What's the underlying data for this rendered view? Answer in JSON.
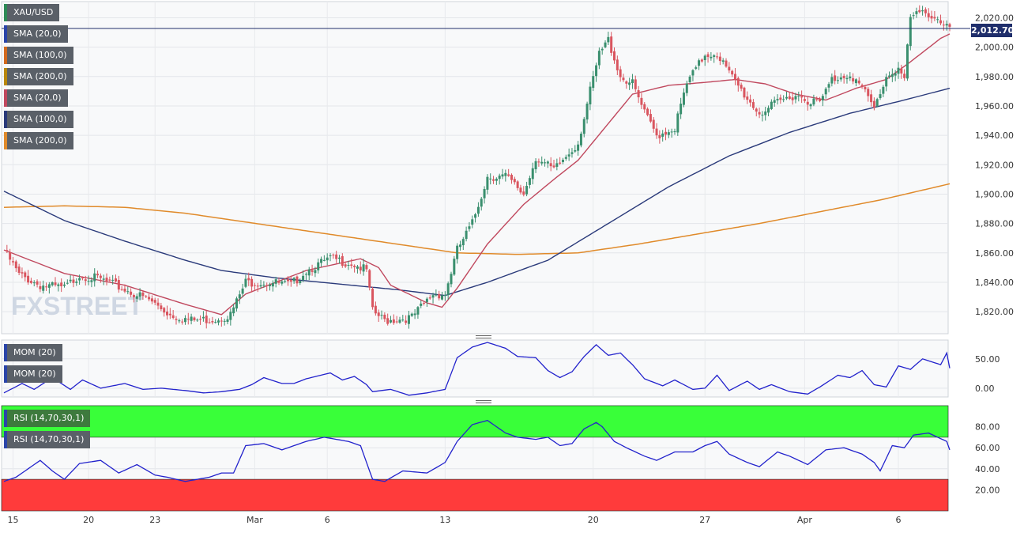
{
  "header": {
    "labels": [
      {
        "text": "XAU/USD",
        "color": "#2e8b57"
      },
      {
        "text": "SMA (20,0)",
        "color": "#2a44a8"
      },
      {
        "text": "SMA (100,0)",
        "color": "#d2691e"
      },
      {
        "text": "SMA (200,0)",
        "color": "#b8860b"
      },
      {
        "text": "SMA (20,0)",
        "color": "#c0485e"
      },
      {
        "text": "SMA (100,0)",
        "color": "#2a3a7a"
      },
      {
        "text": "SMA (200,0)",
        "color": "#e08a2a"
      }
    ],
    "last_price": "2,012.70"
  },
  "chart_data": [
    {
      "type": "candlestick",
      "title": "XAU/USD",
      "watermark": "FXSTREET",
      "ylim": [
        1805,
        2031
      ],
      "yticks": [
        "1,820.00",
        "1,840.00",
        "1,860.00",
        "1,880.00",
        "1,900.00",
        "1,920.00",
        "1,940.00",
        "1,960.00",
        "1,980.00",
        "2,000.00",
        "2,020.00"
      ],
      "ytick_values": [
        1820,
        1840,
        1860,
        1880,
        1900,
        1920,
        1940,
        1960,
        1980,
        2000,
        2020
      ],
      "last_value": 2012.7,
      "x_labels": [
        "15",
        "20",
        "23",
        "Mar",
        "6",
        "13",
        "20",
        "27",
        "Apr",
        "6"
      ],
      "colors": {
        "up": "#3a8f6e",
        "down": "#d9555f",
        "sma20": "#c0485e",
        "sma100": "#2a3a7a",
        "sma200": "#e08a2a"
      },
      "close_anchors": [
        [
          0,
          1862
        ],
        [
          5,
          1845
        ],
        [
          12,
          1838
        ],
        [
          20,
          1836
        ],
        [
          25,
          1845
        ],
        [
          32,
          1842
        ],
        [
          40,
          1835
        ],
        [
          48,
          1828
        ],
        [
          55,
          1818
        ],
        [
          62,
          1814
        ],
        [
          70,
          1815
        ],
        [
          75,
          1818
        ],
        [
          80,
          1840
        ],
        [
          88,
          1840
        ],
        [
          95,
          1838
        ],
        [
          100,
          1848
        ],
        [
          108,
          1856
        ],
        [
          115,
          1853
        ],
        [
          120,
          1848
        ],
        [
          122,
          1820
        ],
        [
          126,
          1814
        ],
        [
          135,
          1816
        ],
        [
          142,
          1832
        ],
        [
          146,
          1832
        ],
        [
          150,
          1862
        ],
        [
          155,
          1880
        ],
        [
          160,
          1912
        ],
        [
          166,
          1912
        ],
        [
          172,
          1900
        ],
        [
          176,
          1925
        ],
        [
          182,
          1916
        ],
        [
          190,
          1935
        ],
        [
          194,
          1970
        ],
        [
          197,
          1995
        ],
        [
          200,
          2005
        ],
        [
          204,
          1980
        ],
        [
          208,
          1975
        ],
        [
          212,
          1955
        ],
        [
          216,
          1940
        ],
        [
          222,
          1945
        ],
        [
          226,
          1975
        ],
        [
          232,
          1995
        ],
        [
          236,
          1996
        ],
        [
          240,
          1982
        ],
        [
          246,
          1965
        ],
        [
          250,
          1955
        ],
        [
          256,
          1962
        ],
        [
          262,
          1968
        ],
        [
          266,
          1964
        ],
        [
          270,
          1962
        ],
        [
          274,
          1978
        ],
        [
          280,
          1982
        ],
        [
          284,
          1972
        ],
        [
          288,
          1958
        ],
        [
          292,
          1980
        ],
        [
          296,
          1986
        ],
        [
          298,
          1978
        ],
        [
          300,
          2020
        ],
        [
          305,
          2024
        ],
        [
          310,
          2018
        ],
        [
          313,
          2012.7
        ]
      ],
      "sma20_anchors": [
        [
          0,
          1862
        ],
        [
          20,
          1846
        ],
        [
          40,
          1838
        ],
        [
          60,
          1825
        ],
        [
          72,
          1818
        ],
        [
          80,
          1832
        ],
        [
          100,
          1848
        ],
        [
          118,
          1856
        ],
        [
          124,
          1850
        ],
        [
          128,
          1838
        ],
        [
          140,
          1826
        ],
        [
          145,
          1823
        ],
        [
          150,
          1836
        ],
        [
          160,
          1866
        ],
        [
          172,
          1893
        ],
        [
          182,
          1910
        ],
        [
          190,
          1923
        ],
        [
          200,
          1948
        ],
        [
          208,
          1968
        ],
        [
          220,
          1974
        ],
        [
          232,
          1976
        ],
        [
          242,
          1978
        ],
        [
          252,
          1975
        ],
        [
          262,
          1968
        ],
        [
          272,
          1964
        ],
        [
          282,
          1972
        ],
        [
          292,
          1978
        ],
        [
          300,
          1990
        ],
        [
          310,
          2006
        ],
        [
          313,
          2009
        ]
      ],
      "sma100_anchors": [
        [
          0,
          1902
        ],
        [
          20,
          1882
        ],
        [
          40,
          1868
        ],
        [
          60,
          1855
        ],
        [
          72,
          1848
        ],
        [
          90,
          1843
        ],
        [
          110,
          1839
        ],
        [
          130,
          1835
        ],
        [
          146,
          1831
        ],
        [
          160,
          1840
        ],
        [
          180,
          1855
        ],
        [
          200,
          1880
        ],
        [
          220,
          1905
        ],
        [
          240,
          1926
        ],
        [
          260,
          1942
        ],
        [
          280,
          1955
        ],
        [
          296,
          1963
        ],
        [
          313,
          1972
        ]
      ],
      "sma200_anchors": [
        [
          0,
          1891
        ],
        [
          20,
          1892
        ],
        [
          40,
          1891
        ],
        [
          60,
          1887
        ],
        [
          80,
          1881
        ],
        [
          100,
          1875
        ],
        [
          120,
          1869
        ],
        [
          140,
          1863
        ],
        [
          150,
          1860
        ],
        [
          170,
          1859
        ],
        [
          190,
          1860
        ],
        [
          210,
          1866
        ],
        [
          230,
          1873
        ],
        [
          250,
          1880
        ],
        [
          270,
          1888
        ],
        [
          290,
          1896
        ],
        [
          313,
          1907
        ]
      ]
    },
    {
      "type": "line",
      "title": "MOM (20)",
      "labels": [
        "MOM (20)",
        "MOM (20)"
      ],
      "ylim": [
        -15,
        82
      ],
      "yticks": [
        "0.00",
        "50.00"
      ],
      "ytick_values": [
        0,
        50
      ],
      "color": "#2222cc",
      "anchors": [
        [
          0,
          -8
        ],
        [
          6,
          8
        ],
        [
          10,
          -2
        ],
        [
          16,
          18
        ],
        [
          22,
          -2
        ],
        [
          26,
          14
        ],
        [
          32,
          0
        ],
        [
          40,
          8
        ],
        [
          46,
          -2
        ],
        [
          52,
          0
        ],
        [
          60,
          -4
        ],
        [
          66,
          -8
        ],
        [
          72,
          -6
        ],
        [
          78,
          -2
        ],
        [
          82,
          6
        ],
        [
          86,
          18
        ],
        [
          92,
          8
        ],
        [
          96,
          8
        ],
        [
          100,
          16
        ],
        [
          108,
          26
        ],
        [
          112,
          14
        ],
        [
          116,
          20
        ],
        [
          120,
          6
        ],
        [
          122,
          -6
        ],
        [
          128,
          -2
        ],
        [
          134,
          -12
        ],
        [
          140,
          -8
        ],
        [
          146,
          -2
        ],
        [
          150,
          52
        ],
        [
          155,
          70
        ],
        [
          160,
          78
        ],
        [
          166,
          68
        ],
        [
          170,
          54
        ],
        [
          176,
          52
        ],
        [
          180,
          30
        ],
        [
          184,
          18
        ],
        [
          188,
          28
        ],
        [
          192,
          54
        ],
        [
          196,
          74
        ],
        [
          200,
          56
        ],
        [
          204,
          60
        ],
        [
          208,
          40
        ],
        [
          212,
          16
        ],
        [
          218,
          4
        ],
        [
          222,
          14
        ],
        [
          228,
          -2
        ],
        [
          232,
          0
        ],
        [
          236,
          22
        ],
        [
          240,
          -4
        ],
        [
          246,
          12
        ],
        [
          250,
          -2
        ],
        [
          254,
          6
        ],
        [
          260,
          -6
        ],
        [
          266,
          -10
        ],
        [
          270,
          2
        ],
        [
          276,
          22
        ],
        [
          280,
          18
        ],
        [
          284,
          30
        ],
        [
          288,
          6
        ],
        [
          292,
          2
        ],
        [
          296,
          38
        ],
        [
          300,
          32
        ],
        [
          304,
          50
        ],
        [
          310,
          40
        ],
        [
          312,
          60
        ],
        [
          313,
          34
        ]
      ]
    },
    {
      "type": "line",
      "title": "RSI (14,70,30,1)",
      "labels": [
        "RSI (14,70,30,1)",
        "RSI (14,70,30,1)"
      ],
      "ylim": [
        0,
        100
      ],
      "yticks": [
        "20.00",
        "40.00",
        "60.00",
        "80.00"
      ],
      "ytick_values": [
        20,
        40,
        60,
        80
      ],
      "bands": {
        "overbought": 70,
        "oversold": 30,
        "overbought_color": "#39ff39",
        "oversold_color": "#ff3b3b"
      },
      "color": "#2222cc",
      "anchors": [
        [
          0,
          28
        ],
        [
          4,
          32
        ],
        [
          8,
          40
        ],
        [
          12,
          48
        ],
        [
          16,
          38
        ],
        [
          20,
          30
        ],
        [
          25,
          45
        ],
        [
          32,
          48
        ],
        [
          38,
          36
        ],
        [
          44,
          44
        ],
        [
          50,
          34
        ],
        [
          54,
          32
        ],
        [
          60,
          28
        ],
        [
          64,
          30
        ],
        [
          68,
          32
        ],
        [
          72,
          36
        ],
        [
          76,
          36
        ],
        [
          80,
          62
        ],
        [
          86,
          64
        ],
        [
          92,
          58
        ],
        [
          96,
          62
        ],
        [
          100,
          66
        ],
        [
          106,
          70
        ],
        [
          110,
          68
        ],
        [
          114,
          66
        ],
        [
          118,
          62
        ],
        [
          122,
          30
        ],
        [
          126,
          28
        ],
        [
          132,
          38
        ],
        [
          140,
          36
        ],
        [
          146,
          46
        ],
        [
          150,
          66
        ],
        [
          155,
          82
        ],
        [
          160,
          86
        ],
        [
          166,
          74
        ],
        [
          170,
          70
        ],
        [
          176,
          68
        ],
        [
          180,
          70
        ],
        [
          184,
          62
        ],
        [
          188,
          64
        ],
        [
          192,
          78
        ],
        [
          196,
          84
        ],
        [
          198,
          80
        ],
        [
          202,
          66
        ],
        [
          206,
          60
        ],
        [
          212,
          52
        ],
        [
          216,
          48
        ],
        [
          222,
          56
        ],
        [
          228,
          56
        ],
        [
          232,
          62
        ],
        [
          236,
          66
        ],
        [
          240,
          54
        ],
        [
          246,
          46
        ],
        [
          250,
          42
        ],
        [
          256,
          56
        ],
        [
          260,
          52
        ],
        [
          266,
          44
        ],
        [
          272,
          58
        ],
        [
          278,
          60
        ],
        [
          284,
          54
        ],
        [
          288,
          46
        ],
        [
          290,
          38
        ],
        [
          294,
          62
        ],
        [
          298,
          60
        ],
        [
          301,
          72
        ],
        [
          306,
          74
        ],
        [
          312,
          66
        ],
        [
          313,
          58
        ]
      ]
    }
  ]
}
